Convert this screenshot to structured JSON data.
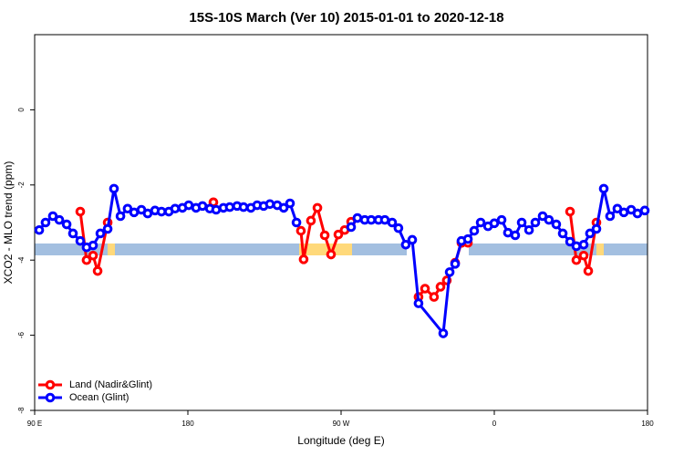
{
  "chart_data": {
    "type": "line",
    "title": "15S-10S March (Ver 10)   2015-01-01 to 2020-12-18",
    "x_label": "Longitude (deg E)",
    "y_label": "XCO2 - MLO trend (ppm)",
    "xlim": [
      90,
      450
    ],
    "xticks": [
      {
        "value": 90,
        "label": "90 E"
      },
      {
        "value": 180,
        "label": "180"
      },
      {
        "value": 270,
        "label": "90 W"
      },
      {
        "value": 360,
        "label": "0"
      },
      {
        "value": 450,
        "label": "180"
      }
    ],
    "ylim": [
      -8,
      2
    ],
    "yticks": [
      0,
      -2,
      -4,
      -6,
      -8
    ],
    "legend": "bottom-left",
    "grid": false,
    "series": [
      {
        "name": "Land (Nadir&Glint)",
        "color": "#ff0000",
        "x": [
          116.8,
          120.5,
          124.3,
          127.0,
          132.9,
          null,
          195.0,
          null,
          246.4,
          248.0,
          252.3,
          256.1,
          260.4,
          264.1,
          268.4,
          272.1,
          275.9,
          null,
          315.5,
          319.3,
          324.6,
          328.4,
          332.1,
          337.0,
          340.7,
          344.5,
          null,
          404.5,
          408.2,
          412.5,
          415.2,
          420.0
        ],
        "values": [
          -2.71,
          -4.0,
          -3.88,
          -4.29,
          -3.0,
          null,
          -2.46,
          null,
          -3.22,
          -3.98,
          -2.95,
          -2.61,
          -3.34,
          -3.85,
          -3.32,
          -3.2,
          -2.98,
          null,
          -4.98,
          -4.76,
          -4.98,
          -4.71,
          -4.54,
          -4.07,
          -3.54,
          -3.54,
          null,
          -2.71,
          -4.0,
          -3.88,
          -4.29,
          -3.0
        ]
      },
      {
        "name": "Ocean (Glint)",
        "color": "#0000ff",
        "x": [
          92.7,
          96.4,
          100.7,
          104.5,
          108.8,
          112.5,
          116.8,
          120.5,
          124.3,
          128.6,
          132.9,
          136.6,
          140.4,
          144.6,
          148.4,
          152.7,
          156.4,
          160.7,
          164.5,
          168.8,
          172.5,
          176.8,
          180.5,
          184.8,
          188.6,
          192.9,
          196.6,
          200.9,
          204.6,
          208.9,
          212.7,
          217.0,
          220.7,
          224.5,
          228.2,
          232.5,
          236.3,
          240.0,
          243.8,
          null,
          275.9,
          279.6,
          283.9,
          287.7,
          292.0,
          295.7,
          300.0,
          303.7,
          308.0,
          311.8,
          315.5,
          330.0,
          333.8,
          337.0,
          340.7,
          344.5,
          348.2,
          352.0,
          356.3,
          360.0,
          364.3,
          368.0,
          372.3,
          376.1,
          380.4,
          384.1,
          388.4,
          392.1,
          396.4,
          400.2,
          404.5,
          408.2,
          412.5,
          416.2,
          420.0,
          424.3,
          428.0,
          432.3,
          436.1,
          440.4,
          444.1,
          448.4
        ],
        "values": [
          -3.2,
          -3.0,
          -2.83,
          -2.93,
          -3.05,
          -3.29,
          -3.49,
          -3.66,
          -3.61,
          -3.29,
          -3.17,
          -2.1,
          -2.83,
          -2.63,
          -2.73,
          -2.66,
          -2.76,
          -2.68,
          -2.71,
          -2.71,
          -2.63,
          -2.61,
          -2.54,
          -2.61,
          -2.56,
          -2.63,
          -2.66,
          -2.61,
          -2.59,
          -2.56,
          -2.59,
          -2.61,
          -2.54,
          -2.56,
          -2.51,
          -2.54,
          -2.61,
          -2.49,
          -3.0,
          null,
          -3.12,
          -2.88,
          -2.93,
          -2.93,
          -2.93,
          -2.93,
          -3.0,
          -3.15,
          -3.59,
          -3.46,
          -5.15,
          -5.95,
          -4.32,
          -4.1,
          -3.49,
          -3.44,
          -3.22,
          -3.0,
          -3.1,
          -3.02,
          -2.93,
          -3.27,
          -3.34,
          -3.0,
          -3.2,
          -3.0,
          -2.83,
          -2.93,
          -3.05,
          -3.29,
          -3.51,
          -3.63,
          -3.59,
          -3.29,
          -3.17,
          -2.1,
          -2.83,
          -2.63,
          -2.73,
          -2.66,
          -2.76,
          -2.68
        ]
      }
    ]
  }
}
